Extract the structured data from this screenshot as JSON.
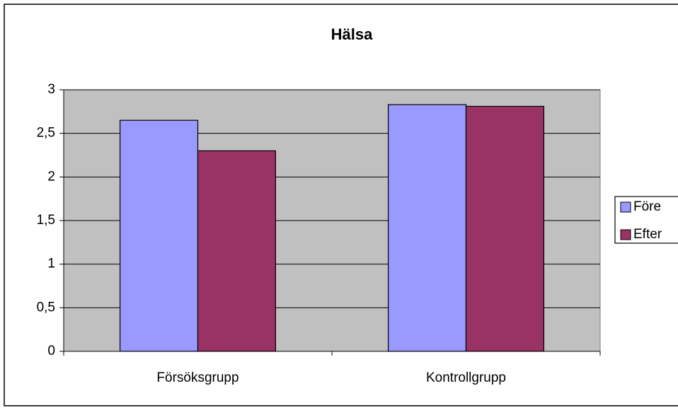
{
  "chart_data": {
    "type": "bar",
    "title": "Hälsa",
    "categories": [
      "Försöksgrupp",
      "Kontrollgrupp"
    ],
    "series": [
      {
        "name": "Före",
        "color": "#9999ff",
        "values": [
          2.65,
          2.83
        ]
      },
      {
        "name": "Efter",
        "color": "#993366",
        "values": [
          2.3,
          2.81
        ]
      }
    ],
    "ylim": [
      0,
      3
    ],
    "yticks": [
      0,
      {
        "value": 0.5,
        "label": "0,5"
      },
      1,
      {
        "value": 1.5,
        "label": "1,5"
      },
      2,
      {
        "value": 2.5,
        "label": "2,5"
      },
      3
    ],
    "grid": true,
    "legend": "right",
    "plot_background": "#c0c0c0"
  }
}
